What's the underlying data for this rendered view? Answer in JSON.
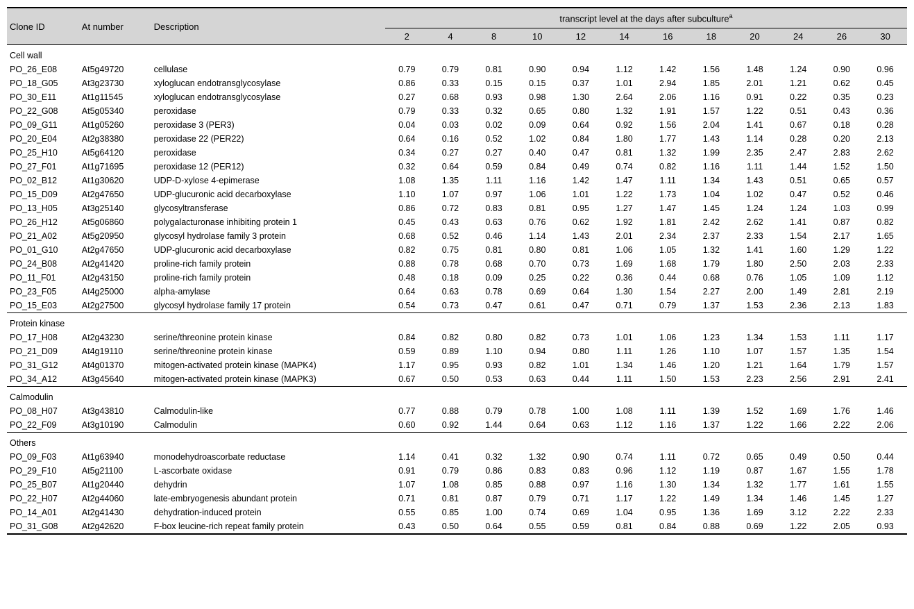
{
  "headers": {
    "clone_id": "Clone ID",
    "at_number": "At number",
    "description": "Description",
    "span_header": "transcript level at the days after subculture",
    "superscript": "a",
    "days": [
      "2",
      "4",
      "8",
      "10",
      "12",
      "14",
      "16",
      "18",
      "20",
      "24",
      "26",
      "30"
    ]
  },
  "sections": [
    {
      "name": "Cell wall",
      "rows": [
        {
          "clone": "PO_26_E08",
          "at": "At5g49720",
          "desc": "cellulase",
          "vals": [
            "0.79",
            "0.79",
            "0.81",
            "0.90",
            "0.94",
            "1.12",
            "1.42",
            "1.56",
            "1.48",
            "1.24",
            "0.90",
            "0.96"
          ]
        },
        {
          "clone": "PO_18_G05",
          "at": "At3g23730",
          "desc": "xyloglucan endotransglycosylase",
          "vals": [
            "0.86",
            "0.33",
            "0.15",
            "0.15",
            "0.37",
            "1.01",
            "2.94",
            "1.85",
            "2.01",
            "1.21",
            "0.62",
            "0.45"
          ]
        },
        {
          "clone": "PO_30_E11",
          "at": "At1g11545",
          "desc": "xyloglucan endotransglycosylase",
          "vals": [
            "0.27",
            "0.68",
            "0.93",
            "0.98",
            "1.30",
            "2.64",
            "2.06",
            "1.16",
            "0.91",
            "0.22",
            "0.35",
            "0.23"
          ]
        },
        {
          "clone": "PO_22_G08",
          "at": "At5g05340",
          "desc": "peroxidase",
          "vals": [
            "0.79",
            "0.33",
            "0.32",
            "0.65",
            "0.80",
            "1.32",
            "1.91",
            "1.57",
            "1.22",
            "0.51",
            "0.43",
            "0.36"
          ]
        },
        {
          "clone": "PO_09_G11",
          "at": "At1g05260",
          "desc": "peroxidase 3 (PER3)",
          "vals": [
            "0.04",
            "0.03",
            "0.02",
            "0.09",
            "0.64",
            "0.92",
            "1.56",
            "2.04",
            "1.41",
            "0.67",
            "0.18",
            "0.28"
          ]
        },
        {
          "clone": "PO_20_E04",
          "at": "At2g38380",
          "desc": "peroxidase 22 (PER22)",
          "vals": [
            "0.64",
            "0.16",
            "0.52",
            "1.02",
            "0.84",
            "1.80",
            "1.77",
            "1.43",
            "1.14",
            "0.28",
            "0.20",
            "2.13"
          ]
        },
        {
          "clone": "PO_25_H10",
          "at": "At5g64120",
          "desc": "peroxidase",
          "vals": [
            "0.34",
            "0.27",
            "0.27",
            "0.40",
            "0.47",
            "0.81",
            "1.32",
            "1.99",
            "2.35",
            "2.47",
            "2.83",
            "2.62"
          ]
        },
        {
          "clone": "PO_27_F01",
          "at": "At1g71695",
          "desc": "peroxidase 12 (PER12)",
          "vals": [
            "0.32",
            "0.64",
            "0.59",
            "0.84",
            "0.49",
            "0.74",
            "0.82",
            "1.16",
            "1.11",
            "1.44",
            "1.52",
            "1.50"
          ]
        },
        {
          "clone": "PO_02_B12",
          "at": "At1g30620",
          "desc": "UDP-D-xylose 4-epimerase",
          "vals": [
            "1.08",
            "1.35",
            "1.11",
            "1.16",
            "1.42",
            "1.47",
            "1.11",
            "1.34",
            "1.43",
            "0.51",
            "0.65",
            "0.57"
          ]
        },
        {
          "clone": "PO_15_D09",
          "at": "At2g47650",
          "desc": "UDP-glucuronic acid decarboxylase",
          "vals": [
            "1.10",
            "1.07",
            "0.97",
            "1.06",
            "1.01",
            "1.22",
            "1.73",
            "1.04",
            "1.02",
            "0.47",
            "0.52",
            "0.46"
          ]
        },
        {
          "clone": "PO_13_H05",
          "at": "At3g25140",
          "desc": "glycosyltransferase",
          "vals": [
            "0.86",
            "0.72",
            "0.83",
            "0.81",
            "0.95",
            "1.27",
            "1.47",
            "1.45",
            "1.24",
            "1.24",
            "1.03",
            "0.99"
          ]
        },
        {
          "clone": "PO_26_H12",
          "at": "At5g06860",
          "desc": "polygalacturonase inhibiting protein 1",
          "vals": [
            "0.45",
            "0.43",
            "0.63",
            "0.76",
            "0.62",
            "1.92",
            "1.81",
            "2.42",
            "2.62",
            "1.41",
            "0.87",
            "0.82"
          ]
        },
        {
          "clone": "PO_21_A02",
          "at": "At5g20950",
          "desc": "glycosyl hydrolase family 3 protein",
          "vals": [
            "0.68",
            "0.52",
            "0.46",
            "1.14",
            "1.43",
            "2.01",
            "2.34",
            "2.37",
            "2.33",
            "1.54",
            "2.17",
            "1.65"
          ]
        },
        {
          "clone": "PO_01_G10",
          "at": "At2g47650",
          "desc": "UDP-glucuronic acid decarboxylase",
          "vals": [
            "0.82",
            "0.75",
            "0.81",
            "0.80",
            "0.81",
            "1.06",
            "1.05",
            "1.32",
            "1.41",
            "1.60",
            "1.29",
            "1.22"
          ]
        },
        {
          "clone": "PO_24_B08",
          "at": "At2g41420",
          "desc": "proline-rich family protein",
          "vals": [
            "0.88",
            "0.78",
            "0.68",
            "0.70",
            "0.73",
            "1.69",
            "1.68",
            "1.79",
            "1.80",
            "2.50",
            "2.03",
            "2.33"
          ]
        },
        {
          "clone": "PO_11_F01",
          "at": "At2g43150",
          "desc": "proline-rich family protein",
          "vals": [
            "0.48",
            "0.18",
            "0.09",
            "0.25",
            "0.22",
            "0.36",
            "0.44",
            "0.68",
            "0.76",
            "1.05",
            "1.09",
            "1.12"
          ]
        },
        {
          "clone": "PO_23_F05",
          "at": "At4g25000",
          "desc": "alpha-amylase",
          "vals": [
            "0.64",
            "0.63",
            "0.78",
            "0.69",
            "0.64",
            "1.30",
            "1.54",
            "2.27",
            "2.00",
            "1.49",
            "2.81",
            "2.19"
          ]
        },
        {
          "clone": "PO_15_E03",
          "at": "At2g27500",
          "desc": "glycosyl hydrolase family 17 protein",
          "vals": [
            "0.54",
            "0.73",
            "0.47",
            "0.61",
            "0.47",
            "0.71",
            "0.79",
            "1.37",
            "1.53",
            "2.36",
            "2.13",
            "1.83"
          ]
        }
      ]
    },
    {
      "name": "Protein kinase",
      "rows": [
        {
          "clone": "PO_17_H08",
          "at": "At2g43230",
          "desc": "serine/threonine protein kinase",
          "vals": [
            "0.84",
            "0.82",
            "0.80",
            "0.82",
            "0.73",
            "1.01",
            "1.06",
            "1.23",
            "1.34",
            "1.53",
            "1.11",
            "1.17"
          ]
        },
        {
          "clone": "PO_21_D09",
          "at": "At4g19110",
          "desc": "serine/threonine protein kinase",
          "vals": [
            "0.59",
            "0.89",
            "1.10",
            "0.94",
            "0.80",
            "1.11",
            "1.26",
            "1.10",
            "1.07",
            "1.57",
            "1.35",
            "1.54"
          ]
        },
        {
          "clone": "PO_31_G12",
          "at": "At4g01370",
          "desc": "mitogen-activated protein kinase (MAPK4)",
          "vals": [
            "1.17",
            "0.95",
            "0.93",
            "0.82",
            "1.01",
            "1.34",
            "1.46",
            "1.20",
            "1.21",
            "1.64",
            "1.79",
            "1.57"
          ]
        },
        {
          "clone": "PO_34_A12",
          "at": "At3g45640",
          "desc": "mitogen-activated protein kinase (MAPK3)",
          "vals": [
            "0.67",
            "0.50",
            "0.53",
            "0.63",
            "0.44",
            "1.11",
            "1.50",
            "1.53",
            "2.23",
            "2.56",
            "2.91",
            "2.41"
          ]
        }
      ]
    },
    {
      "name": "Calmodulin",
      "rows": [
        {
          "clone": "PO_08_H07",
          "at": "At3g43810",
          "desc": "Calmodulin-like",
          "vals": [
            "0.77",
            "0.88",
            "0.79",
            "0.78",
            "1.00",
            "1.08",
            "1.11",
            "1.39",
            "1.52",
            "1.69",
            "1.76",
            "1.46"
          ]
        },
        {
          "clone": "PO_22_F09",
          "at": "At3g10190",
          "desc": "Calmodulin",
          "vals": [
            "0.60",
            "0.92",
            "1.44",
            "0.64",
            "0.63",
            "1.12",
            "1.16",
            "1.37",
            "1.22",
            "1.66",
            "2.22",
            "2.06"
          ]
        }
      ]
    },
    {
      "name": "Others",
      "rows": [
        {
          "clone": "PO_09_F03",
          "at": "At1g63940",
          "desc": "monodehydroascorbate reductase",
          "vals": [
            "1.14",
            "0.41",
            "0.32",
            "1.32",
            "0.90",
            "0.74",
            "1.11",
            "0.72",
            "0.65",
            "0.49",
            "0.50",
            "0.44"
          ]
        },
        {
          "clone": "PO_29_F10",
          "at": "At5g21100",
          "desc": "L-ascorbate oxidase",
          "vals": [
            "0.91",
            "0.79",
            "0.86",
            "0.83",
            "0.83",
            "0.96",
            "1.12",
            "1.19",
            "0.87",
            "1.67",
            "1.55",
            "1.78"
          ]
        },
        {
          "clone": "PO_25_B07",
          "at": "At1g20440",
          "desc": "dehydrin",
          "vals": [
            "1.07",
            "1.08",
            "0.85",
            "0.88",
            "0.97",
            "1.16",
            "1.30",
            "1.34",
            "1.32",
            "1.77",
            "1.61",
            "1.55"
          ]
        },
        {
          "clone": "PO_22_H07",
          "at": "At2g44060",
          "desc": "late-embryogenesis abundant protein",
          "vals": [
            "0.71",
            "0.81",
            "0.87",
            "0.79",
            "0.71",
            "1.17",
            "1.22",
            "1.49",
            "1.34",
            "1.46",
            "1.45",
            "1.27"
          ]
        },
        {
          "clone": "PO_14_A01",
          "at": "At2g41430",
          "desc": "dehydration-induced protein",
          "vals": [
            "0.55",
            "0.85",
            "1.00",
            "0.74",
            "0.69",
            "1.04",
            "0.95",
            "1.36",
            "1.69",
            "3.12",
            "2.22",
            "2.33"
          ]
        },
        {
          "clone": "PO_31_G08",
          "at": "At2g42620",
          "desc": "F-box leucine-rich repeat family protein",
          "vals": [
            "0.43",
            "0.50",
            "0.64",
            "0.55",
            "0.59",
            "0.81",
            "0.84",
            "0.88",
            "0.69",
            "1.22",
            "2.05",
            "0.93"
          ]
        }
      ]
    }
  ]
}
